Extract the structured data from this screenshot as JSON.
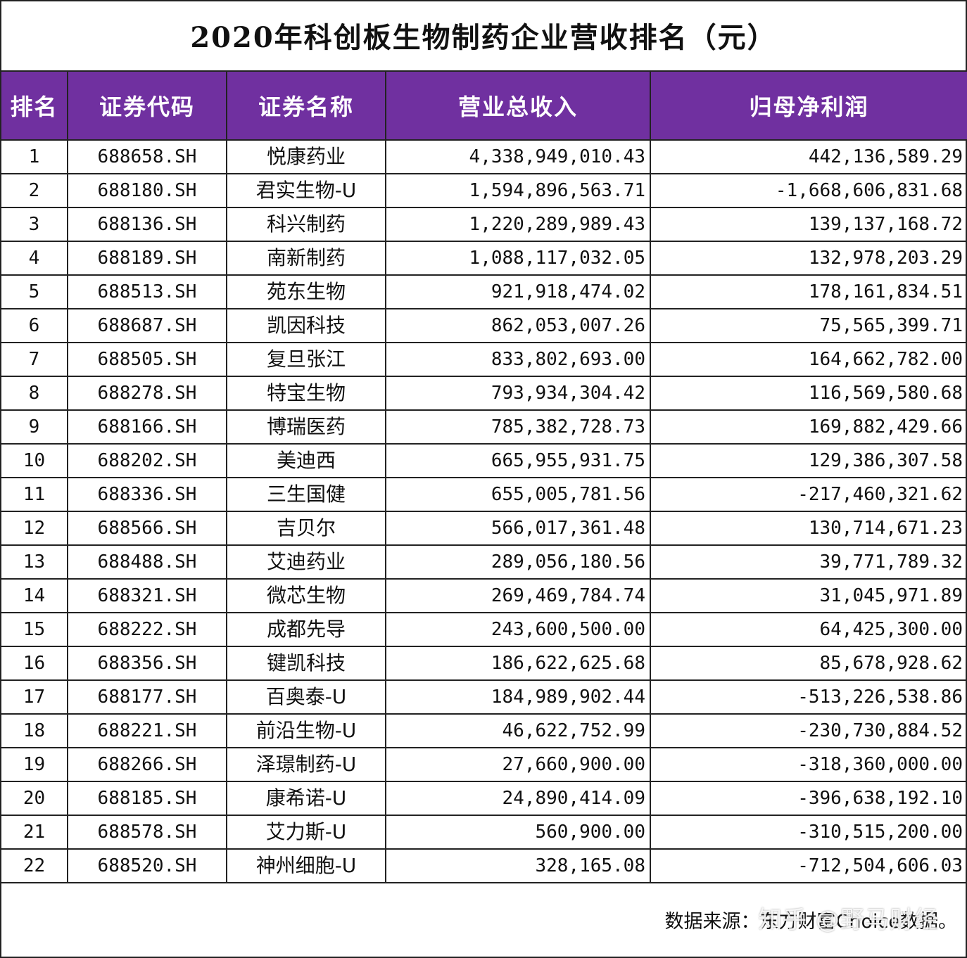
{
  "title": "2020年科创板生物制药企业营收排名（元）",
  "colors": {
    "header_bg": "#7030a0",
    "header_text": "#ffffff",
    "border": "#222222"
  },
  "headers": [
    "排名",
    "证券代码",
    "证券名称",
    "营业总收入",
    "归母净利润"
  ],
  "rows": [
    [
      "1",
      "688658.SH",
      "悦康药业",
      "4,338,949,010.43",
      "442,136,589.29"
    ],
    [
      "2",
      "688180.SH",
      "君实生物-U",
      "1,594,896,563.71",
      "-1,668,606,831.68"
    ],
    [
      "3",
      "688136.SH",
      "科兴制药",
      "1,220,289,989.43",
      "139,137,168.72"
    ],
    [
      "4",
      "688189.SH",
      "南新制药",
      "1,088,117,032.05",
      "132,978,203.29"
    ],
    [
      "5",
      "688513.SH",
      "苑东生物",
      "921,918,474.02",
      "178,161,834.51"
    ],
    [
      "6",
      "688687.SH",
      "凯因科技",
      "862,053,007.26",
      "75,565,399.71"
    ],
    [
      "7",
      "688505.SH",
      "复旦张江",
      "833,802,693.00",
      "164,662,782.00"
    ],
    [
      "8",
      "688278.SH",
      "特宝生物",
      "793,934,304.42",
      "116,569,580.68"
    ],
    [
      "9",
      "688166.SH",
      "博瑞医药",
      "785,382,728.73",
      "169,882,429.66"
    ],
    [
      "10",
      "688202.SH",
      "美迪西",
      "665,955,931.75",
      "129,386,307.58"
    ],
    [
      "11",
      "688336.SH",
      "三生国健",
      "655,005,781.56",
      "-217,460,321.62"
    ],
    [
      "12",
      "688566.SH",
      "吉贝尔",
      "566,017,361.48",
      "130,714,671.23"
    ],
    [
      "13",
      "688488.SH",
      "艾迪药业",
      "289,056,180.56",
      "39,771,789.32"
    ],
    [
      "14",
      "688321.SH",
      "微芯生物",
      "269,469,784.74",
      "31,045,971.89"
    ],
    [
      "15",
      "688222.SH",
      "成都先导",
      "243,600,500.00",
      "64,425,300.00"
    ],
    [
      "16",
      "688356.SH",
      "键凯科技",
      "186,622,625.68",
      "85,678,928.62"
    ],
    [
      "17",
      "688177.SH",
      "百奥泰-U",
      "184,989,902.44",
      "-513,226,538.86"
    ],
    [
      "18",
      "688221.SH",
      "前沿生物-U",
      "46,622,752.99",
      "-230,730,884.52"
    ],
    [
      "19",
      "688266.SH",
      "泽璟制药-U",
      "27,660,900.00",
      "-318,360,000.00"
    ],
    [
      "20",
      "688185.SH",
      "康希诺-U",
      "24,890,414.09",
      "-396,638,192.10"
    ],
    [
      "21",
      "688578.SH",
      "艾力斯-U",
      "560,900.00",
      "-310,515,200.00"
    ],
    [
      "22",
      "688520.SH",
      "神州细胞-U",
      "328,165.08",
      "-712,504,606.03"
    ]
  ],
  "footer": {
    "source": "数据来源：东方财富Choice数据。",
    "watermark": "知乎 @野马财经"
  }
}
